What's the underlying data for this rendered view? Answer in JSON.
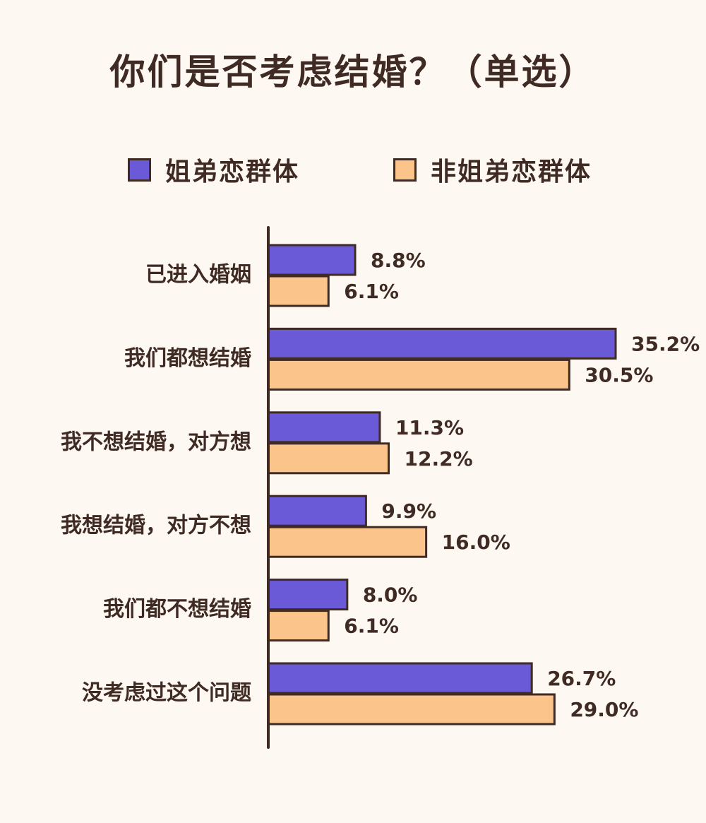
{
  "title": "你们是否考虑结婚？（单选）",
  "colors": {
    "series1": "#6b5ad8",
    "series2": "#fbc48b",
    "ink": "#3f2a24",
    "background": "#fdf8f1"
  },
  "legend": {
    "items": [
      {
        "label": "姐弟恋群体"
      },
      {
        "label": "非姐弟恋群体"
      }
    ]
  },
  "chart_data": {
    "type": "bar",
    "orientation": "horizontal",
    "title": "你们是否考虑结婚？（单选）",
    "categories": [
      "已进入婚姻",
      "我们都想结婚",
      "我不想结婚，对方想",
      "我想结婚，对方不想",
      "我们都不想结婚",
      "没考虑过这个问题"
    ],
    "series": [
      {
        "name": "姐弟恋群体",
        "values": [
          8.8,
          35.2,
          11.3,
          9.9,
          8.0,
          26.7
        ]
      },
      {
        "name": "非姐弟恋群体",
        "values": [
          6.1,
          30.5,
          12.2,
          16.0,
          6.1,
          29.0
        ]
      }
    ],
    "value_labels": [
      [
        "8.8%",
        "35.2%",
        "11.3%",
        "9.9%",
        "8.0%",
        "26.7%"
      ],
      [
        "6.1%",
        "30.5%",
        "12.2%",
        "16.0%",
        "6.1%",
        "29.0%"
      ]
    ],
    "xlim": [
      0,
      40
    ],
    "grid": false,
    "legend_position": "top"
  }
}
